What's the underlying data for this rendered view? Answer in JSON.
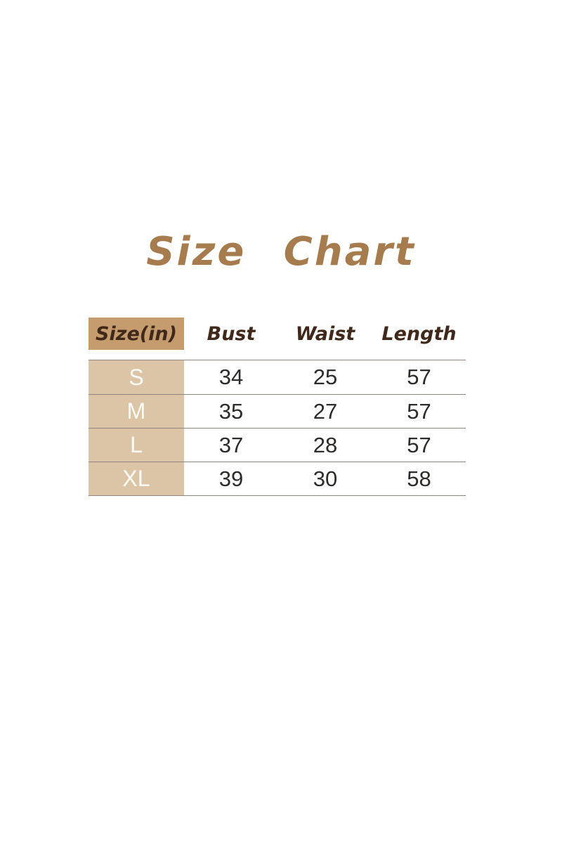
{
  "title": "Size Chart",
  "table": {
    "headers": [
      "Size(in)",
      "Bust",
      "Waist",
      "Length"
    ],
    "rows": [
      [
        "S",
        "34",
        "25",
        "57"
      ],
      [
        "M",
        "35",
        "27",
        "57"
      ],
      [
        "L",
        "37",
        "28",
        "57"
      ],
      [
        "XL",
        "39",
        "30",
        "58"
      ]
    ]
  },
  "colors": {
    "title_brown": "#a67c4e",
    "header_text_brown": "#40291a",
    "header_cell_bg": "#c59c6e",
    "row_label_bg": "#dcc5a7",
    "row_label_text": "#fcfaf5",
    "number_text": "#2e2c2a",
    "separator_line": "#8f8680",
    "background": "#ffffff"
  },
  "chart_data": {
    "type": "table",
    "title": "Size Chart",
    "unit": "inches",
    "columns": [
      "Size(in)",
      "Bust",
      "Waist",
      "Length"
    ],
    "rows": [
      {
        "size": "S",
        "bust": 34,
        "waist": 25,
        "length": 57
      },
      {
        "size": "M",
        "bust": 35,
        "waist": 27,
        "length": 57
      },
      {
        "size": "L",
        "bust": 37,
        "waist": 28,
        "length": 57
      },
      {
        "size": "XL",
        "bust": 39,
        "waist": 30,
        "length": 58
      }
    ]
  }
}
